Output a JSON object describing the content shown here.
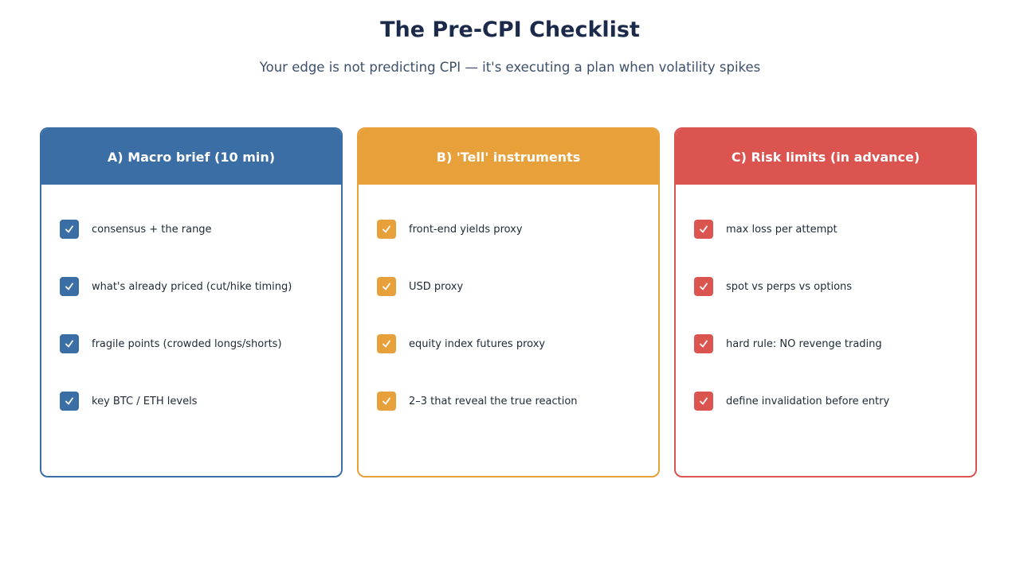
{
  "header": {
    "title": "The Pre-CPI Checklist",
    "subtitle": "Your edge is not predicting CPI — it's executing a plan when volatility spikes"
  },
  "columns": [
    {
      "title": "A) Macro brief (10 min)",
      "items": [
        "consensus + the range",
        "what's already priced (cut/hike timing)",
        "fragile points (crowded longs/shorts)",
        "key BTC / ETH levels"
      ]
    },
    {
      "title": "B) 'Tell' instruments",
      "items": [
        "front-end yields proxy",
        "USD proxy",
        "equity index futures proxy",
        "2–3 that reveal the true reaction"
      ]
    },
    {
      "title": "C) Risk limits (in advance)",
      "items": [
        "max loss per attempt",
        "spot vs perps vs options",
        "hard rule: NO revenge trading",
        "define invalidation before entry"
      ]
    }
  ]
}
